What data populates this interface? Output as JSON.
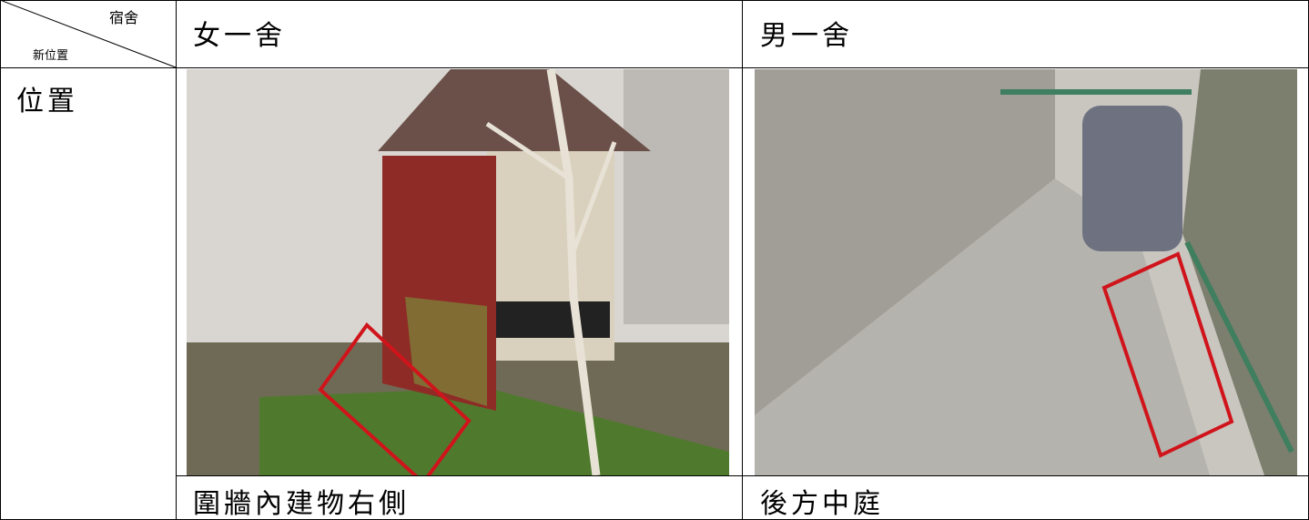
{
  "table": {
    "corner": {
      "top": "宿舍",
      "bottom": "新位置"
    },
    "header": [
      "女一舍",
      "男一舍"
    ],
    "row_label": "位置",
    "captions": [
      "圍牆內建物右側",
      "後方中庭"
    ]
  }
}
